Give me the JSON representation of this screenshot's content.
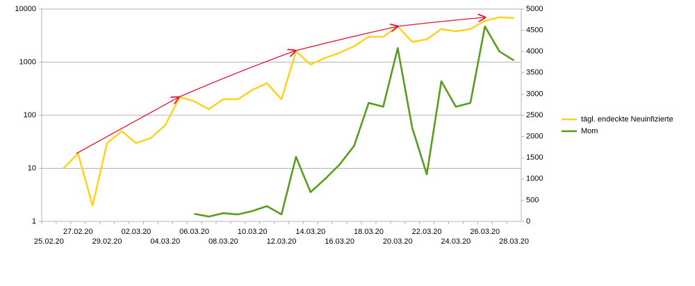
{
  "chart_data": {
    "type": "line",
    "categories": [
      "25.02.20",
      null,
      "27.02.20",
      null,
      "29.02.20",
      null,
      "02.03.20",
      null,
      "04.03.20",
      null,
      "06.03.20",
      null,
      "08.03.20",
      null,
      "10.03.20",
      null,
      "12.03.20",
      null,
      "14.03.20",
      null,
      "16.03.20",
      null,
      "18.03.20",
      null,
      "20.03.20",
      null,
      "22.03.20",
      null,
      "24.03.20",
      null,
      "26.03.20",
      null,
      "28.03.20"
    ],
    "series": [
      {
        "name": "tägl. endeckte Neuinfizierte",
        "color": "#ffd320",
        "axis": "y",
        "values": [
          null,
          10,
          19,
          2,
          30,
          50,
          30,
          37,
          65,
          220,
          183,
          130,
          200,
          200,
          300,
          400,
          200,
          1600,
          900,
          1200,
          1500,
          2000,
          3000,
          3000,
          4700,
          2400,
          2700,
          4200,
          3800,
          4200,
          6000,
          7000,
          6800
        ]
      },
      {
        "name": "Mom",
        "color": "#579d1c",
        "axis": "y2",
        "values": [
          null,
          null,
          null,
          null,
          null,
          null,
          null,
          null,
          null,
          null,
          180,
          115,
          195,
          165,
          245,
          360,
          165,
          1520,
          690,
          1000,
          1340,
          1780,
          2790,
          2700,
          4080,
          2200,
          1110,
          3300,
          2700,
          2790,
          4590,
          4000,
          3790
        ]
      }
    ],
    "ylim": [
      1,
      10000
    ],
    "yscale": "log",
    "yticks": [
      1,
      10,
      100,
      1000,
      10000
    ],
    "y2lim": [
      0,
      5000
    ],
    "y2ticks": [
      0,
      500,
      1000,
      1500,
      2000,
      2500,
      3000,
      3500,
      4000,
      4500,
      5000
    ],
    "grid": true,
    "legend": "right"
  }
}
